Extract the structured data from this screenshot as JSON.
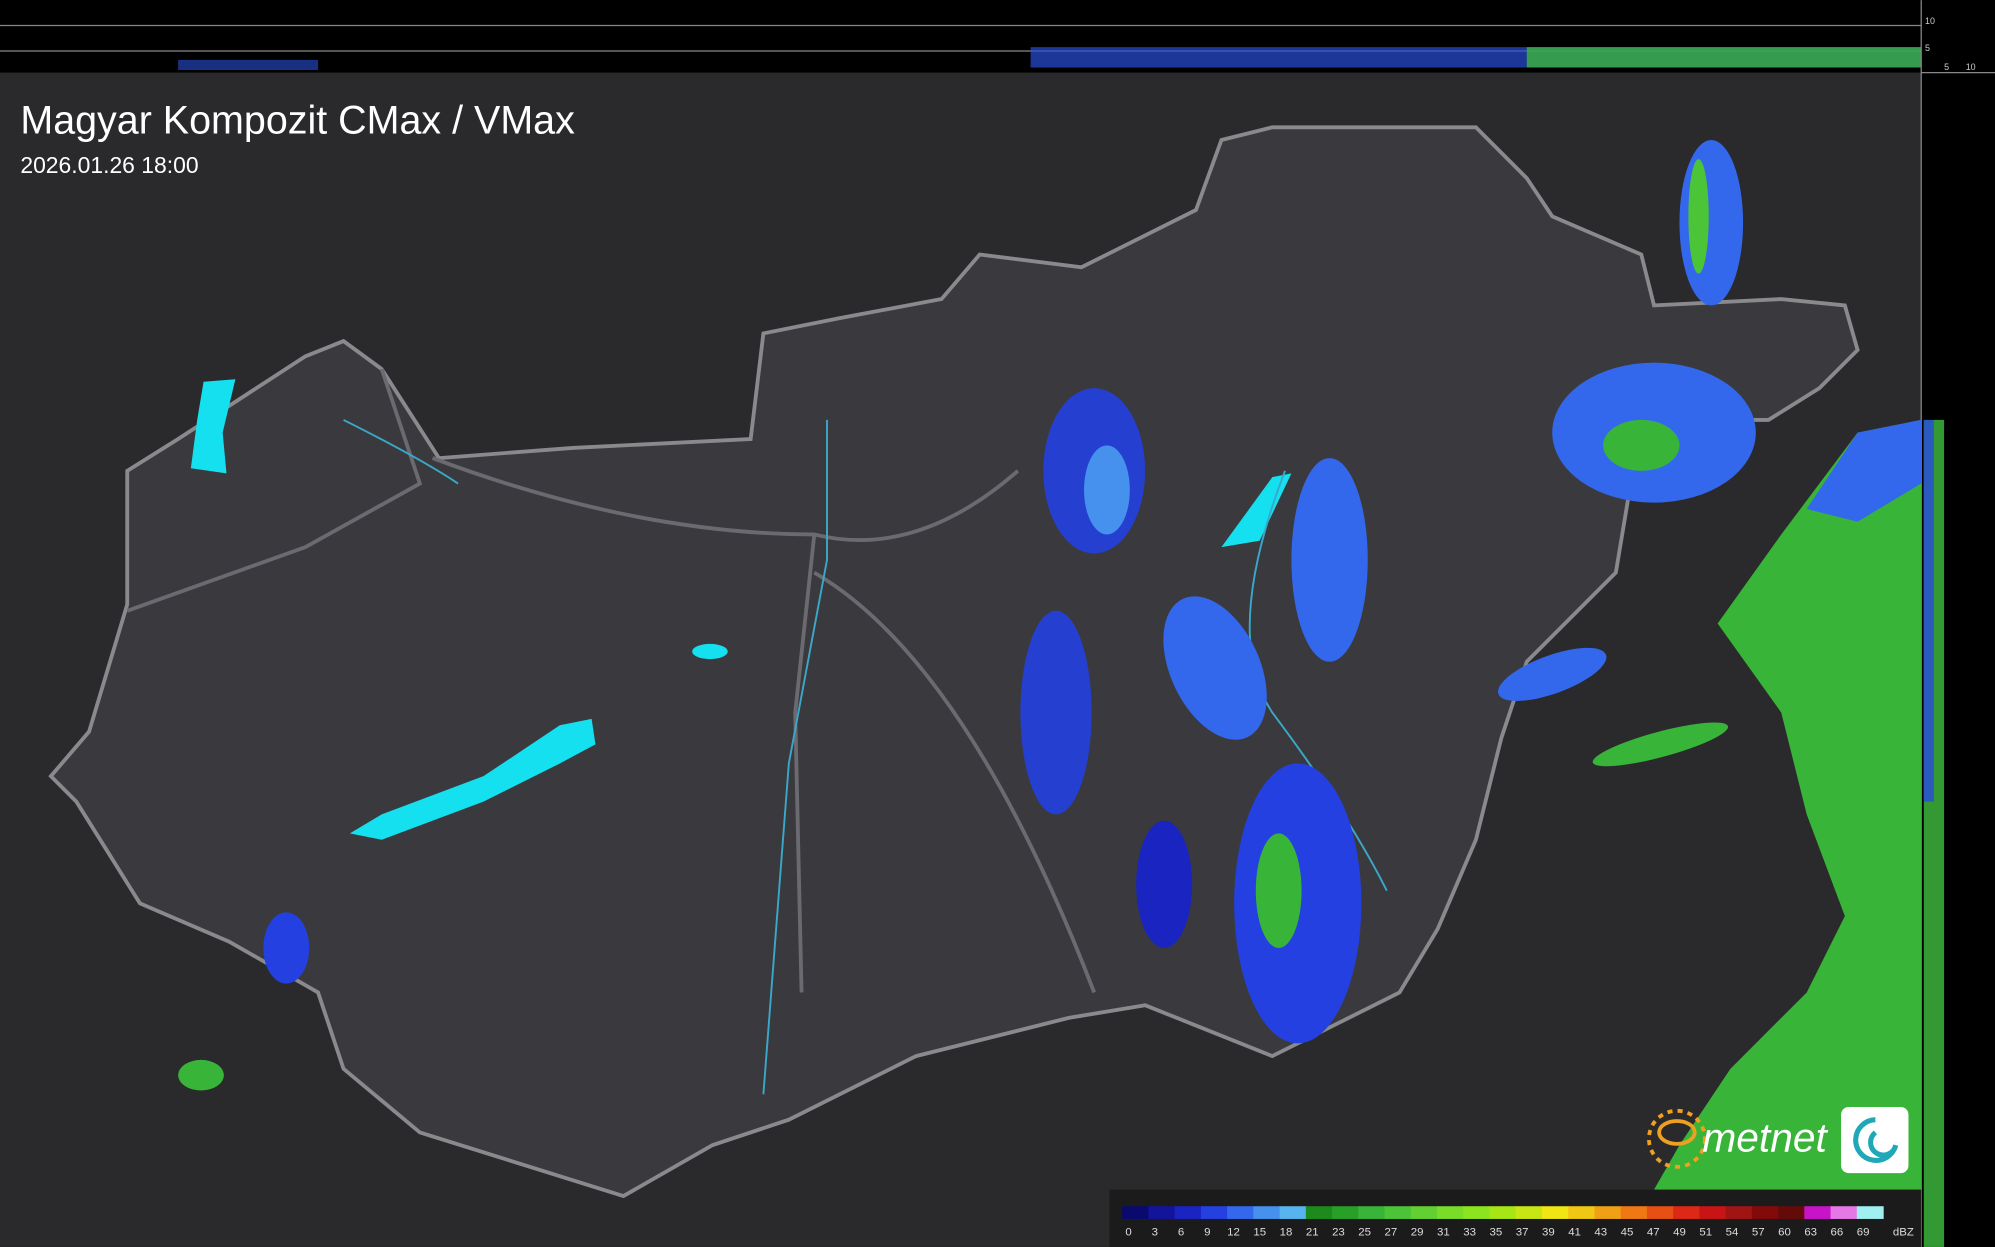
{
  "header": {
    "title": "Magyar Kompozit CMax / VMax",
    "timestamp": "2026.01.26 18:00"
  },
  "side_axis": {
    "top_labels": [
      "10",
      "5"
    ],
    "bottom_labels": [
      "5",
      "10"
    ]
  },
  "logo": {
    "text": "metnet"
  },
  "legend": {
    "unit": "dBZ",
    "levels": [
      {
        "value": 0,
        "color": "#0a0a6e"
      },
      {
        "value": 3,
        "color": "#12149a"
      },
      {
        "value": 6,
        "color": "#1a24c0"
      },
      {
        "value": 9,
        "color": "#2440e0"
      },
      {
        "value": 12,
        "color": "#3468ec"
      },
      {
        "value": 15,
        "color": "#4690ee"
      },
      {
        "value": 18,
        "color": "#58b4f0"
      },
      {
        "value": 21,
        "color": "#1c8a1c"
      },
      {
        "value": 23,
        "color": "#28a028"
      },
      {
        "value": 25,
        "color": "#38b438"
      },
      {
        "value": 27,
        "color": "#4cc438"
      },
      {
        "value": 29,
        "color": "#62d030"
      },
      {
        "value": 31,
        "color": "#78dc28"
      },
      {
        "value": 33,
        "color": "#8ce41e"
      },
      {
        "value": 35,
        "color": "#a6e614"
      },
      {
        "value": 37,
        "color": "#c8e614"
      },
      {
        "value": 39,
        "color": "#f0e614"
      },
      {
        "value": 41,
        "color": "#f0c814"
      },
      {
        "value": 43,
        "color": "#f0a014"
      },
      {
        "value": 45,
        "color": "#f07814"
      },
      {
        "value": 47,
        "color": "#e65014"
      },
      {
        "value": 49,
        "color": "#dc2814"
      },
      {
        "value": 51,
        "color": "#c81414"
      },
      {
        "value": 54,
        "color": "#a01414"
      },
      {
        "value": 57,
        "color": "#820a0a"
      },
      {
        "value": 60,
        "color": "#640a0a"
      },
      {
        "value": 63,
        "color": "#c814c8"
      },
      {
        "value": 66,
        "color": "#e678e6"
      },
      {
        "value": 69,
        "color": "#a0f0f0"
      }
    ]
  }
}
